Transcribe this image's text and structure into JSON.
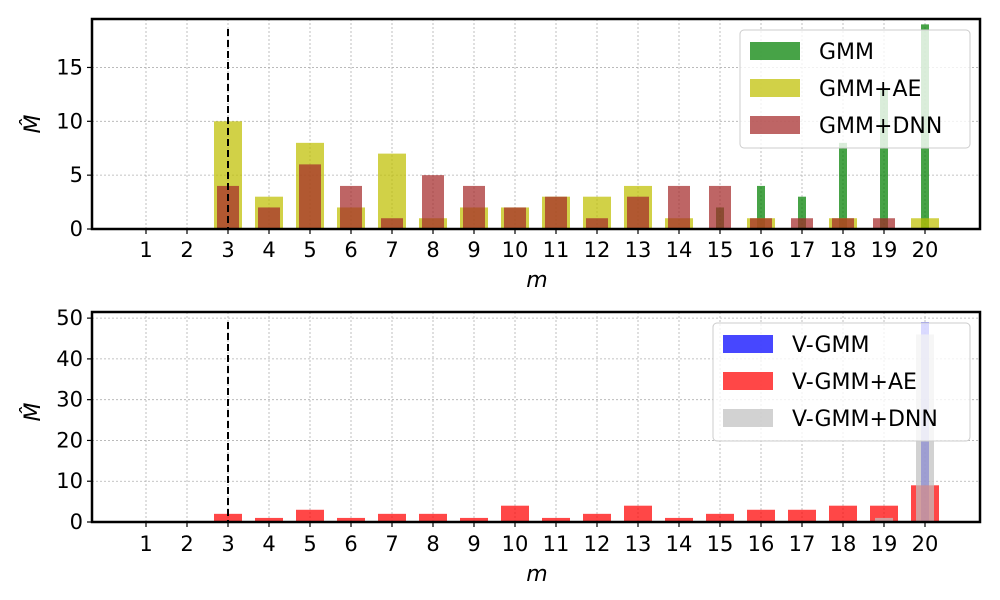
{
  "chart_data": [
    {
      "type": "bar",
      "categories": [
        "1",
        "2",
        "3",
        "4",
        "5",
        "6",
        "7",
        "8",
        "9",
        "10",
        "11",
        "12",
        "13",
        "14",
        "15",
        "16",
        "17",
        "18",
        "19",
        "20"
      ],
      "xlabel": "m",
      "ylabel": "M̂",
      "ylim": [
        0,
        19.5
      ],
      "yticks": [
        0,
        5,
        10,
        15
      ],
      "grid": true,
      "legend_position": "top-right",
      "reference_line_x": "3",
      "series": [
        {
          "name": "GMM",
          "color": "#008000",
          "opacity": 0.72,
          "values": [
            0,
            0,
            0,
            0,
            0,
            0,
            0,
            0,
            0,
            0,
            0,
            0,
            0,
            0,
            2,
            4,
            3,
            8,
            13,
            19
          ]
        },
        {
          "name": "GMM+AE",
          "color": "#bfbf00",
          "opacity": 0.72,
          "values": [
            0,
            0,
            10,
            3,
            8,
            2,
            7,
            1,
            2,
            2,
            3,
            3,
            4,
            1,
            0,
            1,
            0,
            1,
            0,
            1
          ]
        },
        {
          "name": "GMM+DNN",
          "color": "#a52a2a",
          "opacity": 0.72,
          "values": [
            0,
            0,
            4,
            2,
            6,
            4,
            1,
            5,
            4,
            2,
            3,
            1,
            3,
            4,
            4,
            1,
            1,
            1,
            1,
            0
          ]
        }
      ]
    },
    {
      "type": "bar",
      "categories": [
        "1",
        "2",
        "3",
        "4",
        "5",
        "6",
        "7",
        "8",
        "9",
        "10",
        "11",
        "12",
        "13",
        "14",
        "15",
        "16",
        "17",
        "18",
        "19",
        "20"
      ],
      "xlabel": "m",
      "ylabel": "M̂",
      "ylim": [
        0,
        51.5
      ],
      "yticks": [
        0,
        10,
        20,
        30,
        40,
        50
      ],
      "grid": true,
      "legend_position": "top-right",
      "reference_line_x": "3",
      "series": [
        {
          "name": "V-GMM",
          "color": "#0000ff",
          "opacity": 0.72,
          "values": [
            0,
            0,
            0,
            0,
            0,
            0,
            0,
            0,
            0,
            0,
            0,
            0,
            0,
            0,
            0,
            0,
            0,
            0,
            0,
            49
          ]
        },
        {
          "name": "V-GMM+AE",
          "color": "#ff0000",
          "opacity": 0.72,
          "values": [
            0,
            0,
            2,
            1,
            3,
            1,
            2,
            2,
            1,
            4,
            1,
            2,
            4,
            1,
            2,
            3,
            3,
            4,
            4,
            9
          ]
        },
        {
          "name": "V-GMM+DNN",
          "color": "#c0c0c0",
          "opacity": 0.72,
          "values": [
            0,
            0,
            0,
            0,
            0,
            0,
            0,
            0,
            0,
            0,
            0,
            0,
            0,
            0,
            0,
            0,
            0,
            0,
            1,
            46
          ]
        }
      ]
    }
  ]
}
